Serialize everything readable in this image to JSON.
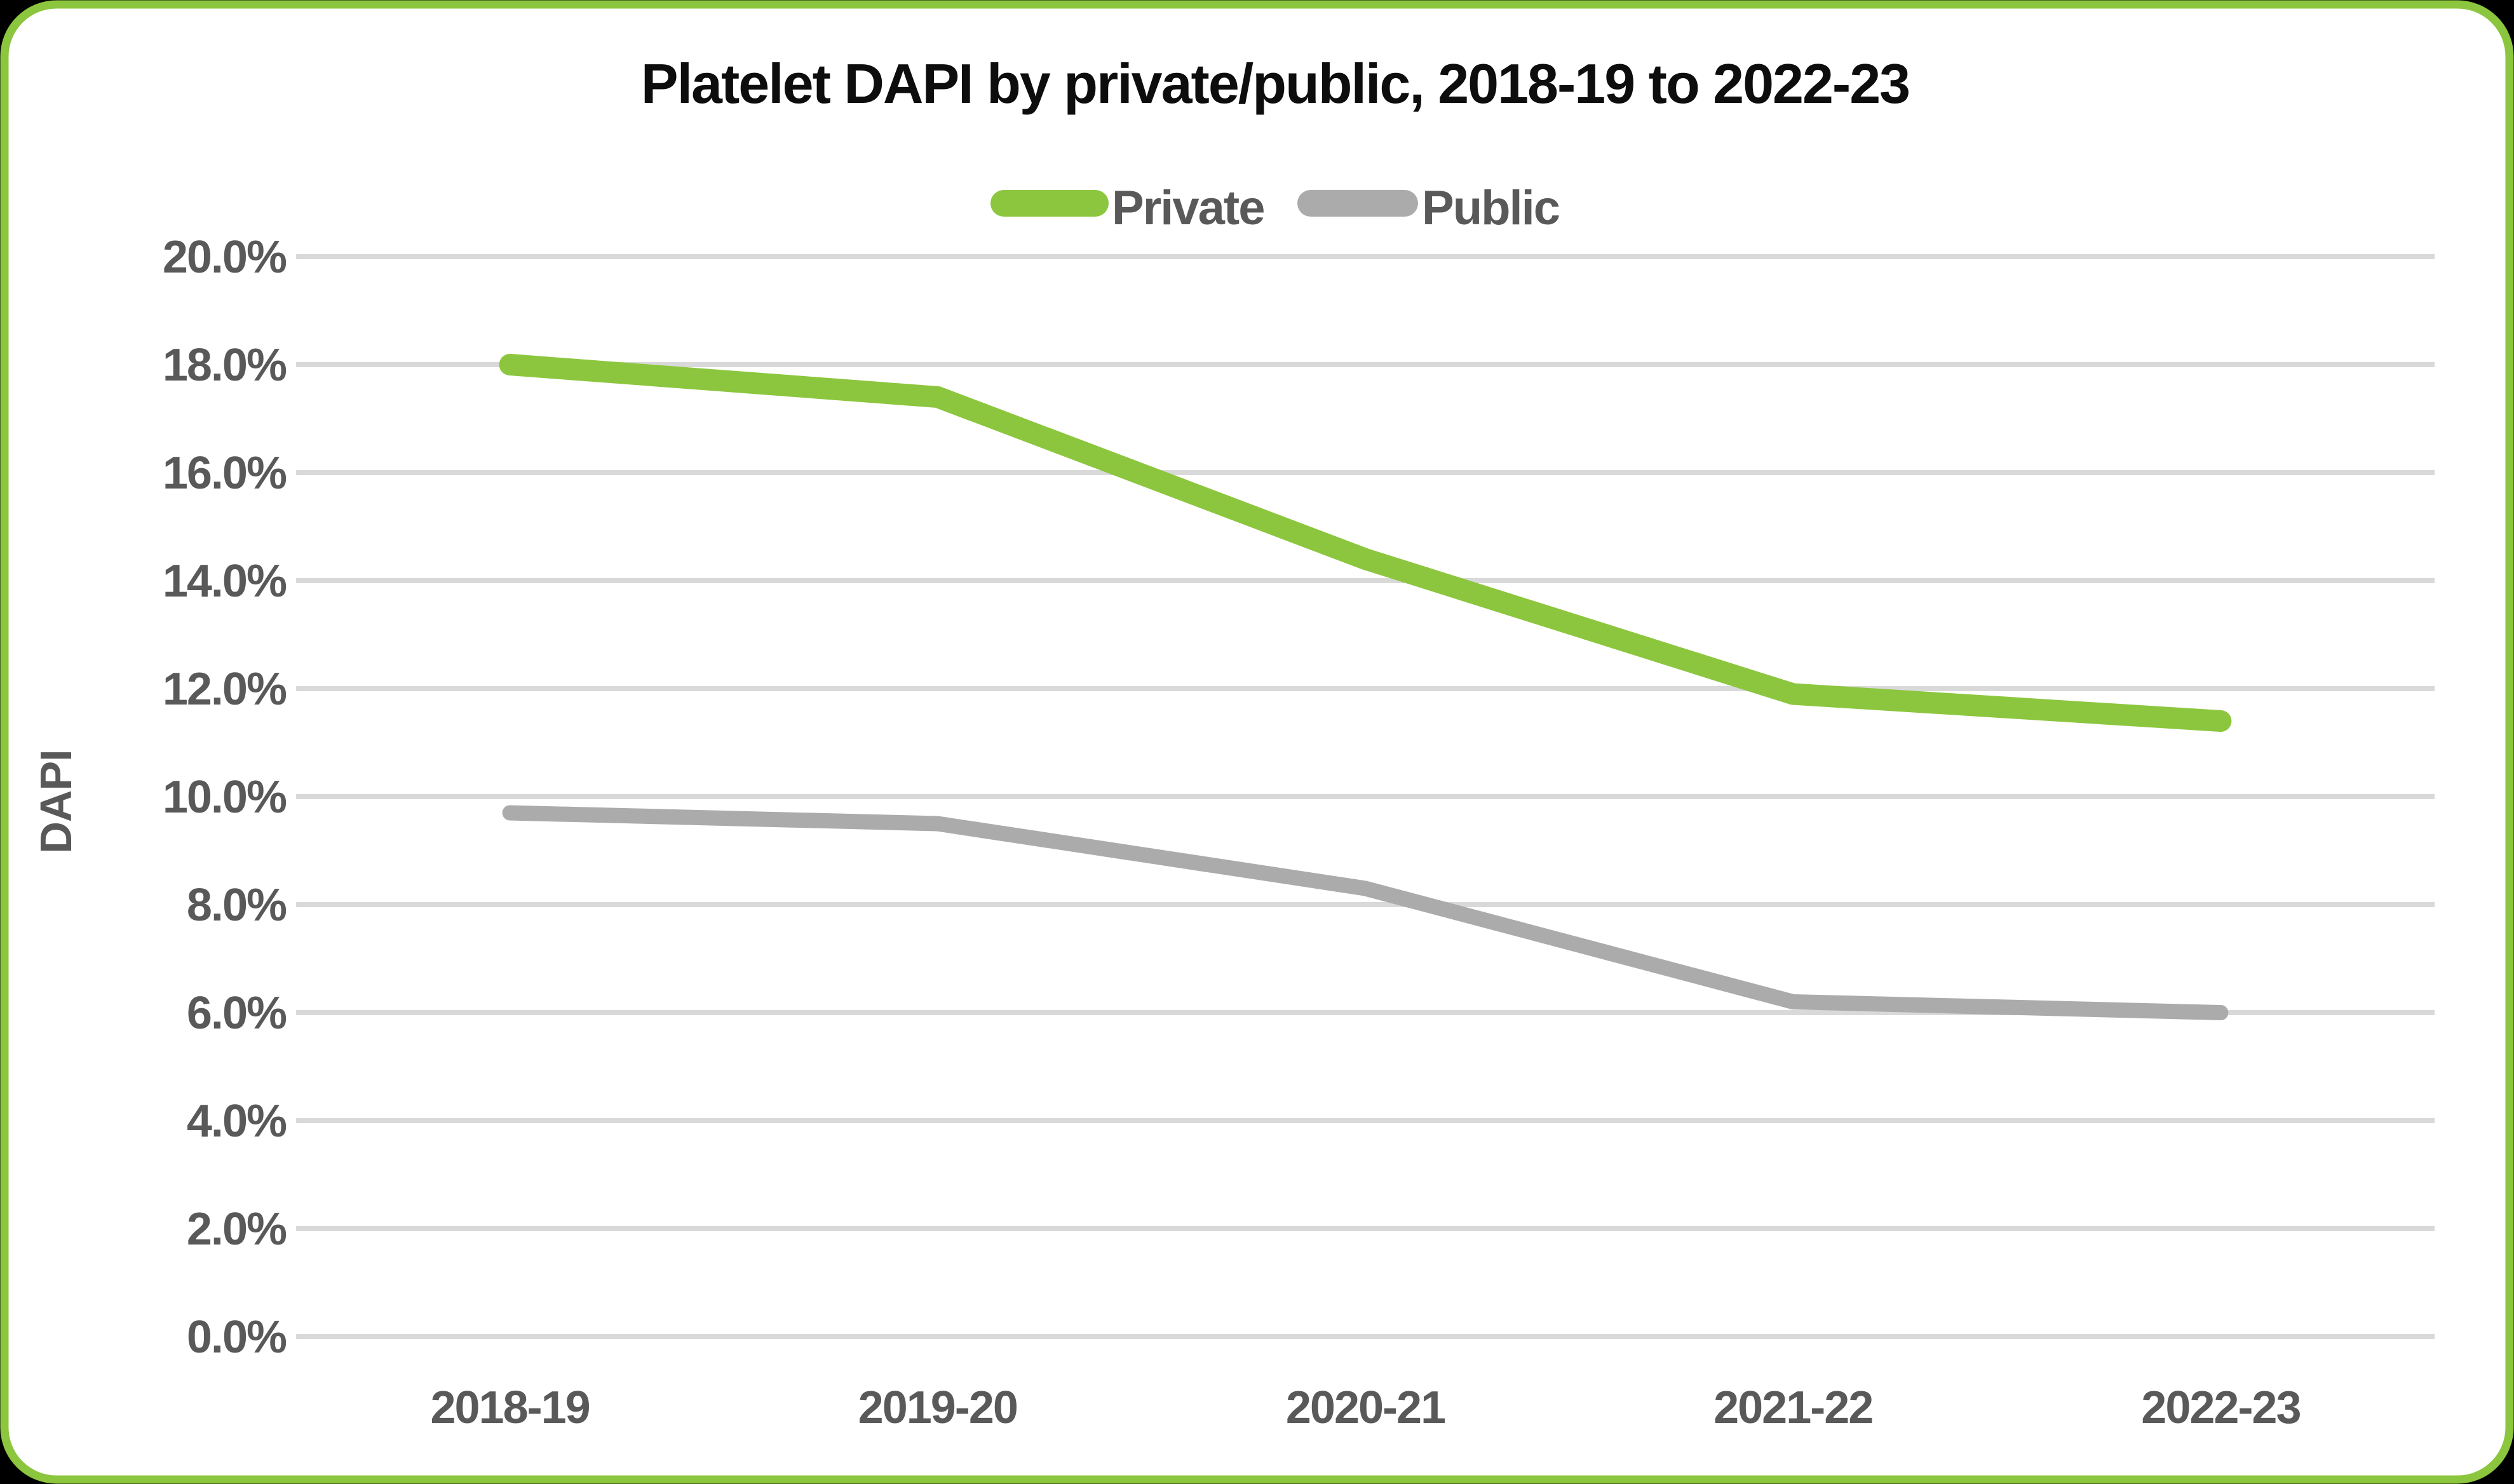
{
  "page": {
    "background_color": "#000000",
    "card_background_color": "#FFFFFF",
    "card_border_color": "#8CC63E",
    "grid_color": "#D9D9D9",
    "tick_label_color": "#595959",
    "title_color": "#0D0D0D"
  },
  "chart_data": {
    "type": "line",
    "title": "Platelet DAPI by private/public, 2018-19 to 2022-23",
    "xlabel": "",
    "ylabel": "DAPI",
    "categories": [
      "2018-19",
      "2019-20",
      "2020-21",
      "2021-22",
      "2022-23"
    ],
    "series": [
      {
        "name": "Private",
        "color": "#8CC63E",
        "values": [
          18.0,
          17.4,
          14.4,
          11.9,
          11.4
        ]
      },
      {
        "name": "Public",
        "color": "#ABABAB",
        "values": [
          9.7,
          9.5,
          8.3,
          6.2,
          6.0
        ]
      }
    ],
    "ylim": [
      0,
      20
    ],
    "y_tick_step": 2,
    "y_tick_values": [
      20,
      18,
      16,
      14,
      12,
      10,
      8,
      6,
      4,
      2,
      0
    ],
    "y_tick_labels": [
      "20.0%",
      "18.0%",
      "16.0%",
      "14.0%",
      "12.0%",
      "10.0%",
      "8.0%",
      "6.0%",
      "4.0%",
      "2.0%",
      "0.0%"
    ],
    "grid": true,
    "legend_position": "top-center",
    "legend_labels": [
      "Private",
      "Public"
    ]
  }
}
